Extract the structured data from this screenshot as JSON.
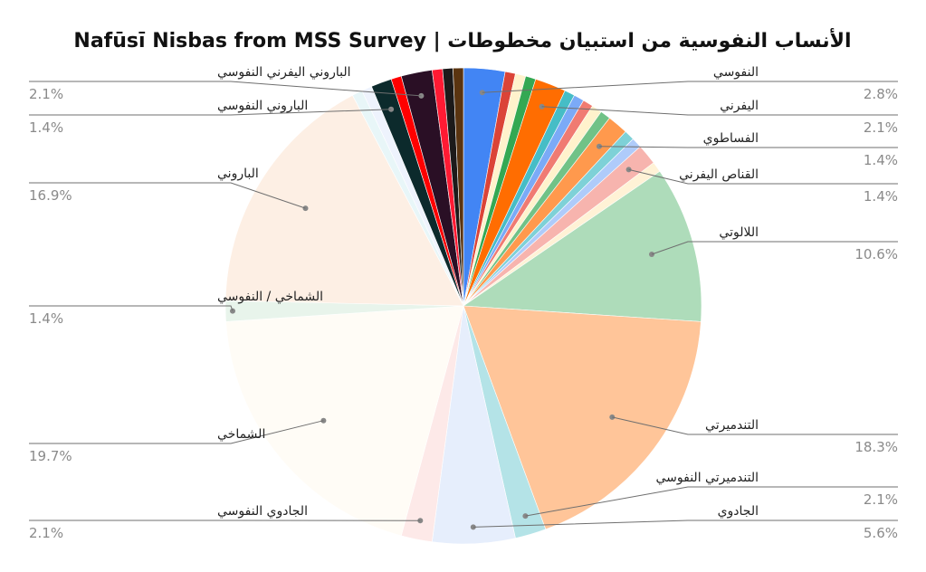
{
  "chart_data": {
    "type": "pie",
    "title": "Nafūsī Nisbas from MSS Survey | الأنساب النفوسية من استبيان مخطوطات",
    "start_angle_deg": 0,
    "direction": "clockwise",
    "slices": [
      {
        "label": "النفوسي",
        "value": 2.8,
        "color": "#4285f4",
        "labeled": true,
        "pct_text": "2.8%"
      },
      {
        "label": "",
        "value": 0.7,
        "color": "#db4437",
        "labeled": false
      },
      {
        "label": "",
        "value": 0.7,
        "color": "#fff2cc",
        "labeled": false
      },
      {
        "label": "",
        "value": 0.7,
        "color": "#34a853",
        "labeled": false
      },
      {
        "label": "اليفرني",
        "value": 2.1,
        "color": "#ff6d01",
        "labeled": true,
        "pct_text": "2.1%"
      },
      {
        "label": "",
        "value": 0.7,
        "color": "#46bdc6",
        "labeled": false
      },
      {
        "label": "",
        "value": 0.7,
        "color": "#7baaf7",
        "labeled": false
      },
      {
        "label": "",
        "value": 0.7,
        "color": "#f07b72",
        "labeled": false
      },
      {
        "label": "",
        "value": 0.7,
        "color": "#fff2cc",
        "labeled": false
      },
      {
        "label": "",
        "value": 0.7,
        "color": "#71c287",
        "labeled": false
      },
      {
        "label": "الفساطوي",
        "value": 1.4,
        "color": "#ff994d",
        "labeled": true,
        "pct_text": "1.4%"
      },
      {
        "label": "",
        "value": 0.7,
        "color": "#7ed1d7",
        "labeled": false
      },
      {
        "label": "",
        "value": 0.7,
        "color": "#afcbfa",
        "labeled": false
      },
      {
        "label": "القناص اليفرني",
        "value": 1.4,
        "color": "#f7b4ae",
        "labeled": true,
        "pct_text": "1.4%"
      },
      {
        "label": "",
        "value": 0.7,
        "color": "#fff2d6",
        "labeled": false
      },
      {
        "label": "اللالوتي",
        "value": 10.6,
        "color": "#aedcba",
        "labeled": true,
        "pct_text": "10.6%"
      },
      {
        "label": "التندميرتي",
        "value": 18.3,
        "color": "#ffc599",
        "labeled": true,
        "pct_text": "18.3%"
      },
      {
        "label": "التندميرتي النفوسي",
        "value": 2.1,
        "color": "#b4e3e7",
        "labeled": true,
        "pct_text": "2.1%"
      },
      {
        "label": "الجادوي",
        "value": 5.6,
        "color": "#e6eefc",
        "labeled": true,
        "pct_text": "5.6%"
      },
      {
        "label": "الجادوي النفوسي",
        "value": 2.1,
        "color": "#fde9e8",
        "labeled": true,
        "pct_text": "2.1%"
      },
      {
        "label": "الشماخي",
        "value": 19.7,
        "color": "#fffcf6",
        "labeled": true,
        "pct_text": "19.7%"
      },
      {
        "label": "الشماخي / النفوسي",
        "value": 1.4,
        "color": "#e8f4eb",
        "labeled": true,
        "pct_text": "1.4%"
      },
      {
        "label": "الباروني",
        "value": 16.9,
        "color": "#fdefe4",
        "labeled": true,
        "pct_text": "16.9%"
      },
      {
        "label": "",
        "value": 0.7,
        "color": "#e8f6f8",
        "labeled": false
      },
      {
        "label": "",
        "value": 0.7,
        "color": "#eef3fd",
        "labeled": false
      },
      {
        "label": "الباروني النفوسي",
        "value": 1.4,
        "color": "#0c2a2c",
        "labeled": true,
        "pct_text": "1.4%"
      },
      {
        "label": "",
        "value": 0.7,
        "color": "#ff0000",
        "labeled": false
      },
      {
        "label": "الباروني اليفرني النفوسي",
        "value": 2.1,
        "color": "#2a0f25",
        "labeled": true,
        "pct_text": "2.1%"
      },
      {
        "label": "",
        "value": 0.7,
        "color": "#ff1a33",
        "labeled": false
      },
      {
        "label": "",
        "value": 0.7,
        "color": "#1c1a1a",
        "labeled": false
      },
      {
        "label": "",
        "value": 0.7,
        "color": "#5a3410",
        "labeled": false
      }
    ]
  }
}
